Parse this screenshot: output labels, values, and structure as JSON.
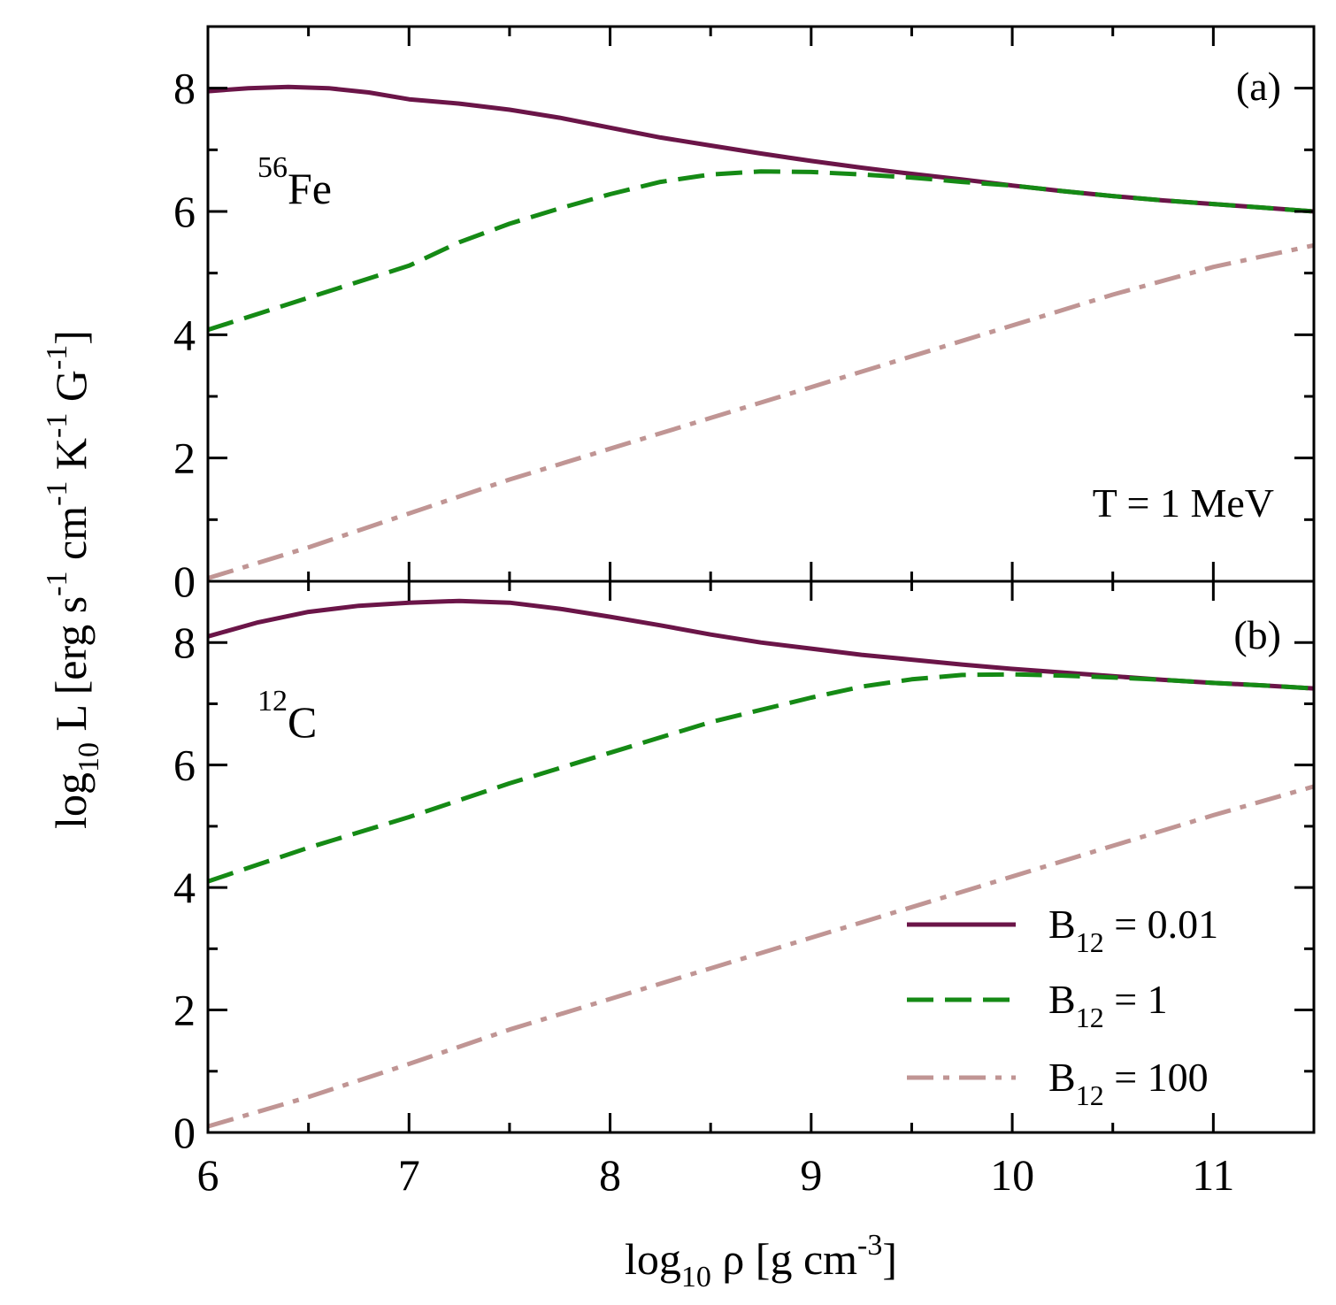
{
  "chart_data": [
    {
      "type": "line",
      "panel_label": "(a)",
      "nucleus": {
        "mass_number": "56",
        "symbol": "Fe"
      },
      "annotation": "T = 1 MeV",
      "xlim": [
        6,
        11.5
      ],
      "ylim": [
        0,
        9
      ],
      "xticks": [
        6,
        7,
        8,
        9,
        10,
        11
      ],
      "yticks": [
        0,
        2,
        4,
        6,
        8
      ],
      "series": [
        {
          "name": "B12 = 0.01",
          "color": "#6b1548",
          "dash": "solid",
          "x": [
            6.0,
            6.2,
            6.4,
            6.6,
            6.8,
            7.0,
            7.25,
            7.5,
            7.75,
            8.0,
            8.25,
            8.5,
            8.75,
            9.0,
            9.25,
            9.5,
            9.75,
            10.0,
            10.25,
            10.5,
            10.75,
            11.0,
            11.25,
            11.5
          ],
          "y": [
            7.95,
            8.0,
            8.02,
            8.0,
            7.93,
            7.82,
            7.75,
            7.65,
            7.52,
            7.36,
            7.2,
            7.07,
            6.94,
            6.82,
            6.71,
            6.61,
            6.52,
            6.42,
            6.33,
            6.25,
            6.18,
            6.12,
            6.06,
            6.0
          ]
        },
        {
          "name": "B12 = 1",
          "color": "#158a15",
          "dash": "dashed",
          "x": [
            6.0,
            6.5,
            7.0,
            7.25,
            7.5,
            7.75,
            8.0,
            8.25,
            8.5,
            8.75,
            9.0,
            9.25,
            9.5,
            9.75,
            10.0,
            10.25,
            10.5,
            10.75,
            11.0,
            11.25,
            11.5
          ],
          "y": [
            4.08,
            4.6,
            5.12,
            5.5,
            5.8,
            6.05,
            6.28,
            6.48,
            6.6,
            6.65,
            6.64,
            6.6,
            6.55,
            6.48,
            6.42,
            6.33,
            6.25,
            6.18,
            6.12,
            6.06,
            6.0
          ]
        },
        {
          "name": "B12 = 100",
          "color": "#c09594",
          "dash": "dash-dot",
          "x": [
            6.0,
            6.5,
            7.0,
            7.5,
            8.0,
            8.5,
            9.0,
            9.5,
            10.0,
            10.5,
            11.0,
            11.5
          ],
          "y": [
            0.05,
            0.55,
            1.1,
            1.65,
            2.15,
            2.65,
            3.15,
            3.65,
            4.15,
            4.65,
            5.1,
            5.45
          ]
        }
      ]
    },
    {
      "type": "line",
      "panel_label": "(b)",
      "nucleus": {
        "mass_number": "12",
        "symbol": "C"
      },
      "xlim": [
        6,
        11.5
      ],
      "ylim": [
        0,
        9
      ],
      "xticks": [
        6,
        7,
        8,
        9,
        10,
        11
      ],
      "yticks": [
        0,
        2,
        4,
        6,
        8
      ],
      "series": [
        {
          "name": "B12 = 0.01",
          "color": "#6b1548",
          "dash": "solid",
          "x": [
            6.0,
            6.25,
            6.5,
            6.75,
            7.0,
            7.25,
            7.5,
            7.75,
            8.0,
            8.25,
            8.5,
            8.75,
            9.0,
            9.25,
            9.5,
            9.75,
            10.0,
            10.25,
            10.5,
            10.75,
            11.0,
            11.25,
            11.5
          ],
          "y": [
            8.1,
            8.33,
            8.5,
            8.6,
            8.65,
            8.68,
            8.65,
            8.55,
            8.42,
            8.28,
            8.13,
            8.0,
            7.9,
            7.8,
            7.72,
            7.64,
            7.57,
            7.51,
            7.45,
            7.39,
            7.34,
            7.3,
            7.25
          ]
        },
        {
          "name": "B12 = 1",
          "color": "#158a15",
          "dash": "dashed",
          "x": [
            6.0,
            6.5,
            7.0,
            7.5,
            8.0,
            8.5,
            9.0,
            9.25,
            9.5,
            9.75,
            10.0,
            10.25,
            10.5,
            10.75,
            11.0,
            11.25,
            11.5
          ],
          "y": [
            4.1,
            4.65,
            5.15,
            5.7,
            6.2,
            6.7,
            7.1,
            7.28,
            7.4,
            7.47,
            7.48,
            7.46,
            7.43,
            7.39,
            7.34,
            7.3,
            7.25
          ]
        },
        {
          "name": "B12 = 100",
          "color": "#c09594",
          "dash": "dash-dot",
          "x": [
            6.0,
            6.5,
            7.0,
            7.5,
            8.0,
            8.5,
            9.0,
            9.5,
            10.0,
            10.5,
            11.0,
            11.5
          ],
          "y": [
            0.1,
            0.58,
            1.12,
            1.68,
            2.18,
            2.68,
            3.18,
            3.68,
            4.18,
            4.68,
            5.18,
            5.65
          ]
        }
      ]
    }
  ],
  "axes": {
    "xlabel": {
      "prefix": "log",
      "sub": "10",
      "suffix": " ρ [g cm",
      "exp": "-3",
      "close": "]"
    },
    "ylabel": {
      "prefix": "log",
      "sub": "10",
      "main": " L [erg  s",
      "exp1": "-1",
      "part2": " cm",
      "exp2": "-1",
      "part3": " K",
      "exp3": "-1",
      "part4": " G",
      "exp4": "-1",
      "close": "]"
    }
  },
  "legend": {
    "placement": "lower-right of panel (b)",
    "items": [
      {
        "symbol": "B",
        "sub": "12",
        "value": " = 0.01",
        "color": "#6b1548",
        "dash": "solid"
      },
      {
        "symbol": "B",
        "sub": "12",
        "value": " = 1",
        "color": "#158a15",
        "dash": "dashed"
      },
      {
        "symbol": "B",
        "sub": "12",
        "value": " = 100",
        "color": "#c09594",
        "dash": "dash-dot"
      }
    ]
  }
}
